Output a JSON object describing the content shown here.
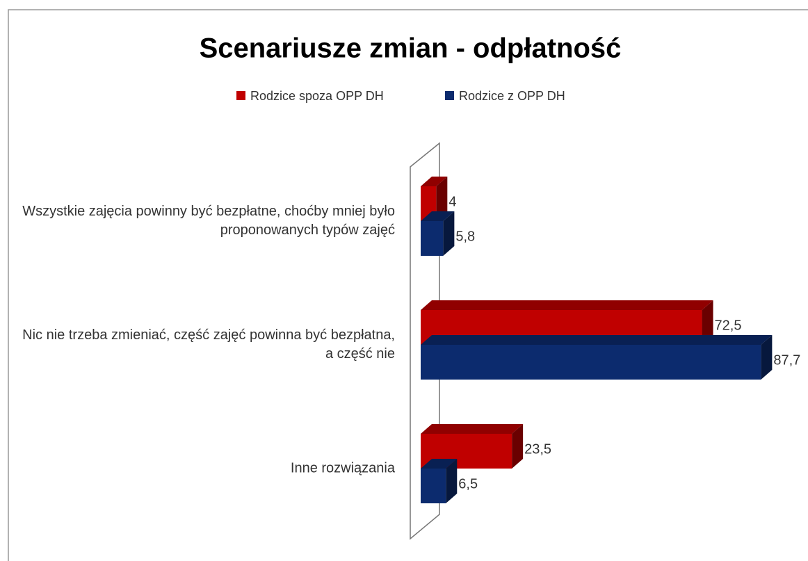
{
  "chart_data": {
    "type": "bar3d_horizontal",
    "title": "Scenariusze zmian - odpłatność",
    "categories": [
      "Wszystkie zajęcia powinny być bezpłatne,  choćby mniej było proponowanych typów zajęć",
      "Nic nie trzeba zmieniać, część zajęć powinna być bezpłatna, a część nie",
      "Inne rozwiązania"
    ],
    "series": [
      {
        "name": "Rodzice spoza OPP DH",
        "color": "#c00000",
        "values": [
          4,
          72.5,
          23.5
        ],
        "value_labels": [
          "4",
          "72,5",
          "23,5"
        ]
      },
      {
        "name": "Rodzice z OPP DH",
        "color": "#0c2b6e",
        "values": [
          5.8,
          87.7,
          6.5
        ],
        "value_labels": [
          "5,8",
          "87,7",
          "6,5"
        ]
      }
    ],
    "legend": "top"
  }
}
